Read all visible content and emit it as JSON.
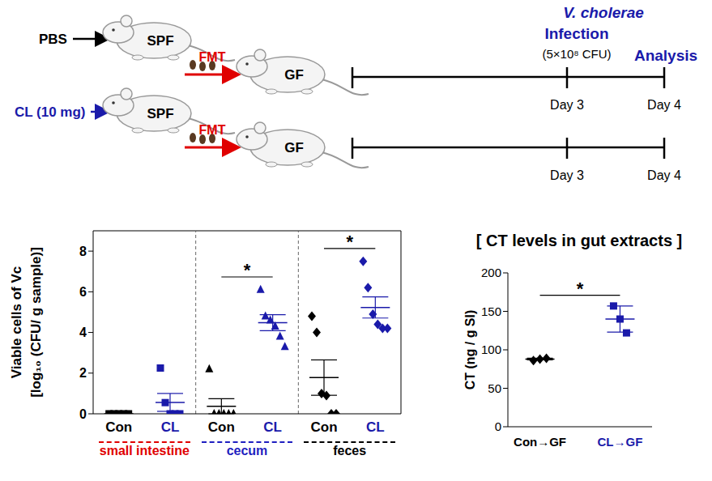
{
  "diagram": {
    "arms": [
      {
        "treatment": "PBS",
        "donor": "SPF",
        "transfer": "FMT",
        "recipient": "GF",
        "timeline": [
          "Day 3",
          "Day 4"
        ]
      },
      {
        "treatment": "CL (10 mg)",
        "donor": "SPF",
        "transfer": "FMT",
        "recipient": "GF",
        "timeline": [
          "Day 3",
          "Day 4"
        ]
      }
    ],
    "infection": {
      "organism": "V. cholerae",
      "label": "Infection",
      "dose": "(5×10⁸ CFU)"
    },
    "endpoint": "Analysis"
  },
  "chart_data": [
    {
      "type": "scatter",
      "ylabel": [
        "Viable cells of Vc",
        "[log₁₀ (CFU/ g sample)]"
      ],
      "ylim": [
        0,
        9
      ],
      "yticks": [
        0,
        2,
        4,
        6,
        8
      ],
      "groups": [
        {
          "name": "small intestine",
          "color": "#e00000",
          "series": [
            {
              "name": "Con",
              "color": "#000000",
              "marker": "square",
              "values": [
                0,
                0,
                0,
                0,
                0
              ],
              "mean": 0,
              "error": 0
            },
            {
              "name": "CL",
              "color": "#1a1aaa",
              "marker": "square",
              "values": [
                2.25,
                0.55,
                0,
                0,
                0
              ],
              "mean": 0.56,
              "error": 0.44
            }
          ]
        },
        {
          "name": "cecum",
          "color": "#1f1fc0",
          "series": [
            {
              "name": "Con",
              "color": "#000000",
              "marker": "triangle",
              "values": [
                2.2,
                0,
                0,
                0,
                0,
                0
              ],
              "mean": 0.37,
              "error": 0.37
            },
            {
              "name": "CL",
              "color": "#1a1aaa",
              "marker": "triangle",
              "values": [
                6.1,
                4.8,
                4.6,
                4.3,
                3.8,
                3.3
              ],
              "mean": 4.48,
              "error": 0.39
            }
          ]
        },
        {
          "name": "feces",
          "color": "#000000",
          "series": [
            {
              "name": "Con",
              "color": "#000000",
              "marker": "diamond",
              "values": [
                4.8,
                4.0,
                1.0,
                0.9,
                0,
                0
              ],
              "mean": 1.78,
              "error": 0.87
            },
            {
              "name": "CL",
              "color": "#1a1aaa",
              "marker": "diamond",
              "values": [
                7.5,
                6.2,
                4.9,
                4.4,
                4.2,
                4.2
              ],
              "mean": 5.23,
              "error": 0.52
            }
          ]
        }
      ],
      "annotations": [
        {
          "text": "*",
          "group": "cecum"
        },
        {
          "text": "*",
          "group": "feces"
        }
      ]
    },
    {
      "type": "scatter",
      "title": "[ CT levels in gut extracts ]",
      "ylabel": "CT (ng / g SI)",
      "ylim": [
        0,
        200
      ],
      "yticks": [
        0,
        50,
        100,
        150,
        200
      ],
      "series": [
        {
          "name": "Con→GF",
          "color": "#000000",
          "marker": "diamond",
          "values": [
            86,
            88,
            89
          ],
          "mean": 88,
          "error": 1
        },
        {
          "name": "CL→GF",
          "color": "#1a1aaa",
          "marker": "square",
          "values": [
            157,
            140,
            122
          ],
          "mean": 140,
          "error": 17
        }
      ],
      "annotations": [
        {
          "text": "*"
        }
      ]
    }
  ]
}
